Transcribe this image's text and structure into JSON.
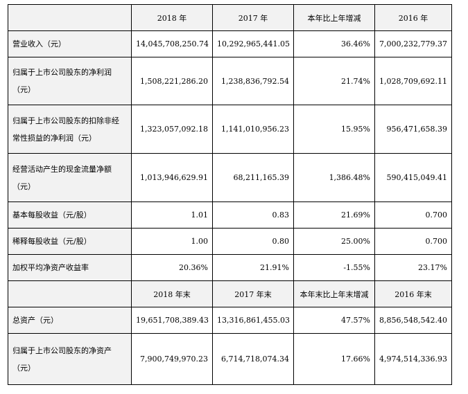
{
  "header1": [
    "",
    "2018 年",
    "2017 年",
    "本年比上年增减",
    "2016 年"
  ],
  "section1_rows": [
    {
      "label_lines": [
        "营业收入（元）"
      ],
      "values": [
        "14,045,708,250.74",
        "10,292,965,441.05",
        "36.46%",
        "7,000,232,779.37"
      ]
    },
    {
      "label_lines": [
        "归属于上市公司股东的净利润",
        "（元）"
      ],
      "values": [
        "1,508,221,286.20",
        "1,238,836,792.54",
        "21.74%",
        "1,028,709,692.11"
      ]
    },
    {
      "label_lines": [
        "归属于上市公司股东的扣除非经",
        "常性损益的净利润（元）"
      ],
      "values": [
        "1,323,057,092.18",
        "1,141,010,956.23",
        "15.95%",
        "956,471,658.39"
      ]
    },
    {
      "label_lines": [
        "经营活动产生的现金流量净额",
        "（元）"
      ],
      "values": [
        "1,013,946,629.91",
        "68,211,165.39",
        "1,386.48%",
        "590,415,049.41"
      ]
    },
    {
      "label_lines": [
        "基本每股收益（元/股）"
      ],
      "values": [
        "1.01",
        "0.83",
        "21.69%",
        "0.700"
      ]
    },
    {
      "label_lines": [
        "稀释每股收益（元/股）"
      ],
      "values": [
        "1.00",
        "0.80",
        "25.00%",
        "0.700"
      ]
    },
    {
      "label_lines": [
        "加权平均净资产收益率"
      ],
      "values": [
        "20.36%",
        "21.91%",
        "-1.55%",
        "23.17%"
      ]
    }
  ],
  "header2": [
    "",
    "2018 年末",
    "2017 年末",
    "本年末比上年末增减",
    "2016 年末"
  ],
  "section2_rows": [
    {
      "label_lines": [
        "总资产（元）"
      ],
      "values": [
        "19,651,708,389.43",
        "13,316,861,455.03",
        "47.57%",
        "8,856,548,542.40"
      ]
    },
    {
      "label_lines": [
        "归属于上市公司股东的净资产",
        "（元）"
      ],
      "values": [
        "7,900,749,970.23",
        "6,714,718,074.34",
        "17.66%",
        "4,974,514,336.93"
      ]
    }
  ]
}
